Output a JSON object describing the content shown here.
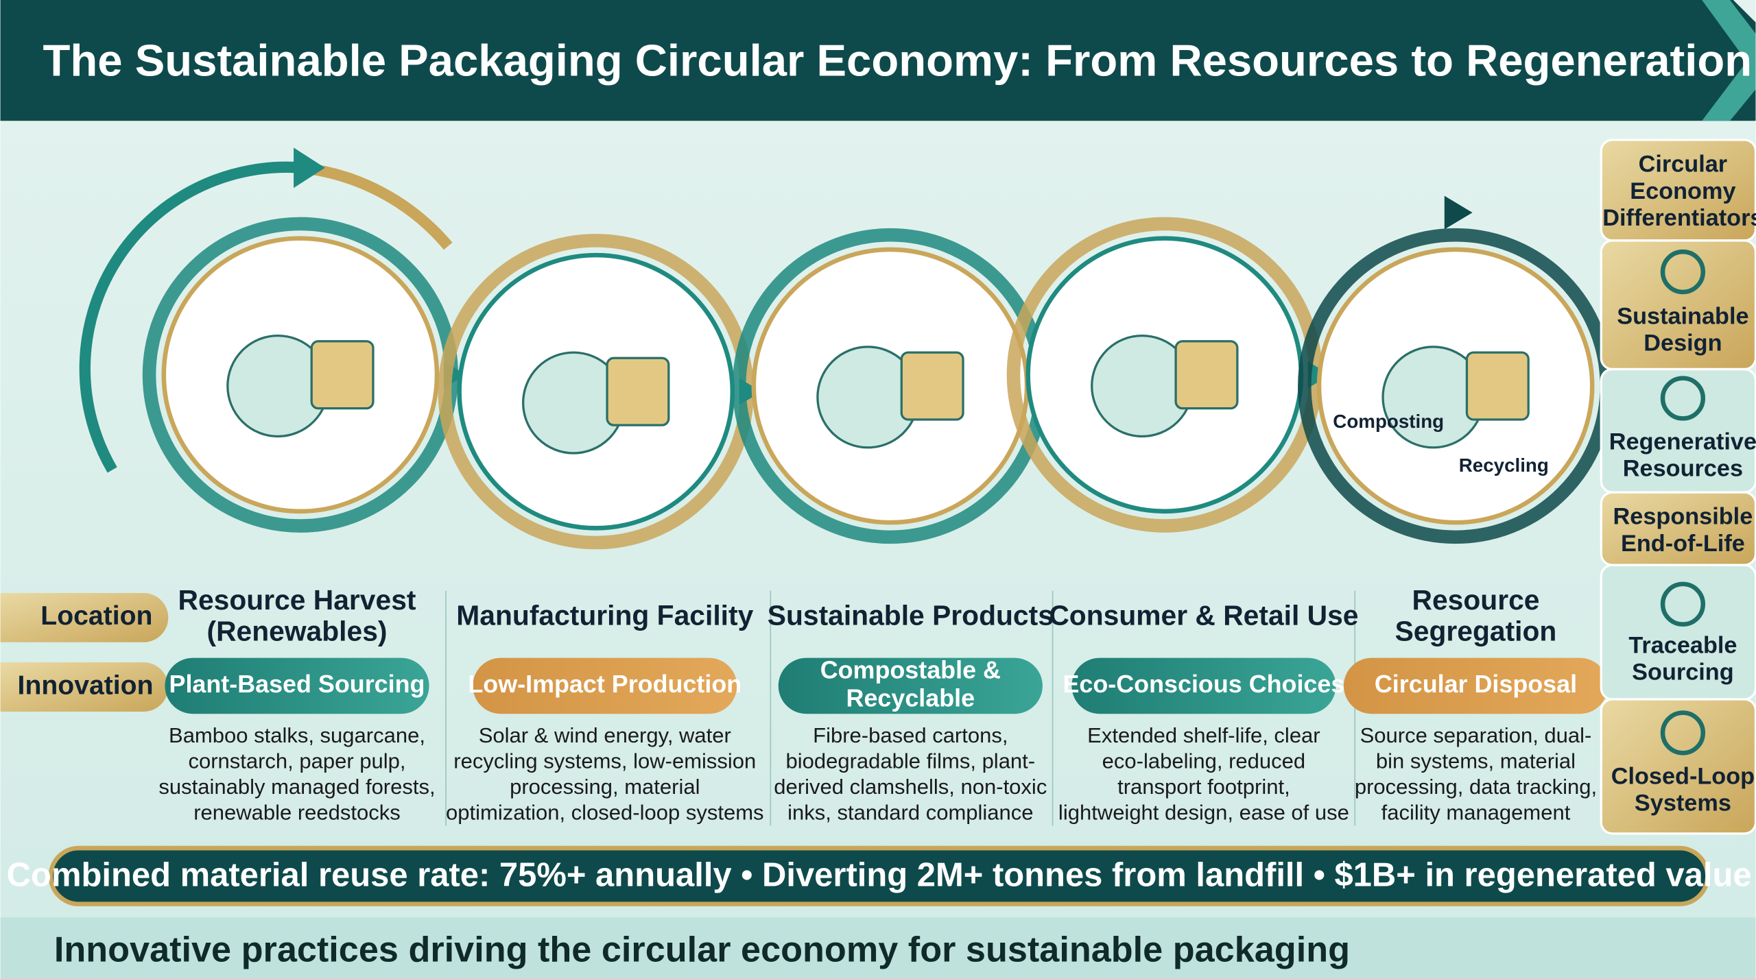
{
  "header": {
    "title": "The Sustainable Packaging Circular Economy: From Resources to Regeneration"
  },
  "row_labels": [
    "Location",
    "Innovation"
  ],
  "stages": [
    {
      "location": [
        "Resource Harvest",
        "(Renewables)"
      ],
      "innovation": [
        "Plant-Based Sourcing"
      ],
      "description": [
        "Bamboo stalks, sugarcane,",
        "cornstarch, paper pulp,",
        "sustainably managed forests,",
        "renewable reedstocks"
      ]
    },
    {
      "location": [
        "Manufacturing Facility"
      ],
      "innovation": [
        "Low-Impact Production"
      ],
      "description": [
        "Solar & wind energy, water",
        "recycling systems, low-emission",
        "processing, material",
        "optimization, closed-loop systems"
      ]
    },
    {
      "location": [
        "Sustainable Products"
      ],
      "innovation": [
        "Compostable &",
        "Recyclable"
      ],
      "description": [
        "Fibre-based cartons,",
        "biodegradable films, plant-",
        "derived clamshells, non-toxic",
        "inks, standard compliance"
      ]
    },
    {
      "location": [
        "Consumer & Retail Use"
      ],
      "innovation": [
        "Eco-Conscious Choices"
      ],
      "description": [
        "Extended shelf-life, clear",
        "eco-labeling, reduced",
        "transport footprint,",
        "lightweight design, ease of use"
      ]
    },
    {
      "location": [
        "Resource",
        "Segregation"
      ],
      "innovation": [
        "Circular Disposal"
      ],
      "description": [
        "Source separation, dual-",
        "bin systems, material",
        "processing, data tracking,",
        "facility management"
      ]
    }
  ],
  "illustration_labels": [
    "Composting",
    "Recycling"
  ],
  "sidebar": {
    "title": [
      "Circular",
      "Economy",
      "Differentiators"
    ],
    "items": [
      [
        "Sustainable",
        "Design"
      ],
      [
        "Regenerative",
        "Resources"
      ],
      [
        "Responsible",
        "End-of-Life"
      ],
      [
        "Traceable",
        "Sourcing"
      ],
      [
        "Closed-Loop",
        "Systems"
      ]
    ]
  },
  "banner": "Combined material reuse rate: 75%+ annually • Diverting 2M+ tonnes from landfill • $1B+ in regenerated value",
  "footer": "Innovative practices driving the circular economy for sustainable packaging"
}
